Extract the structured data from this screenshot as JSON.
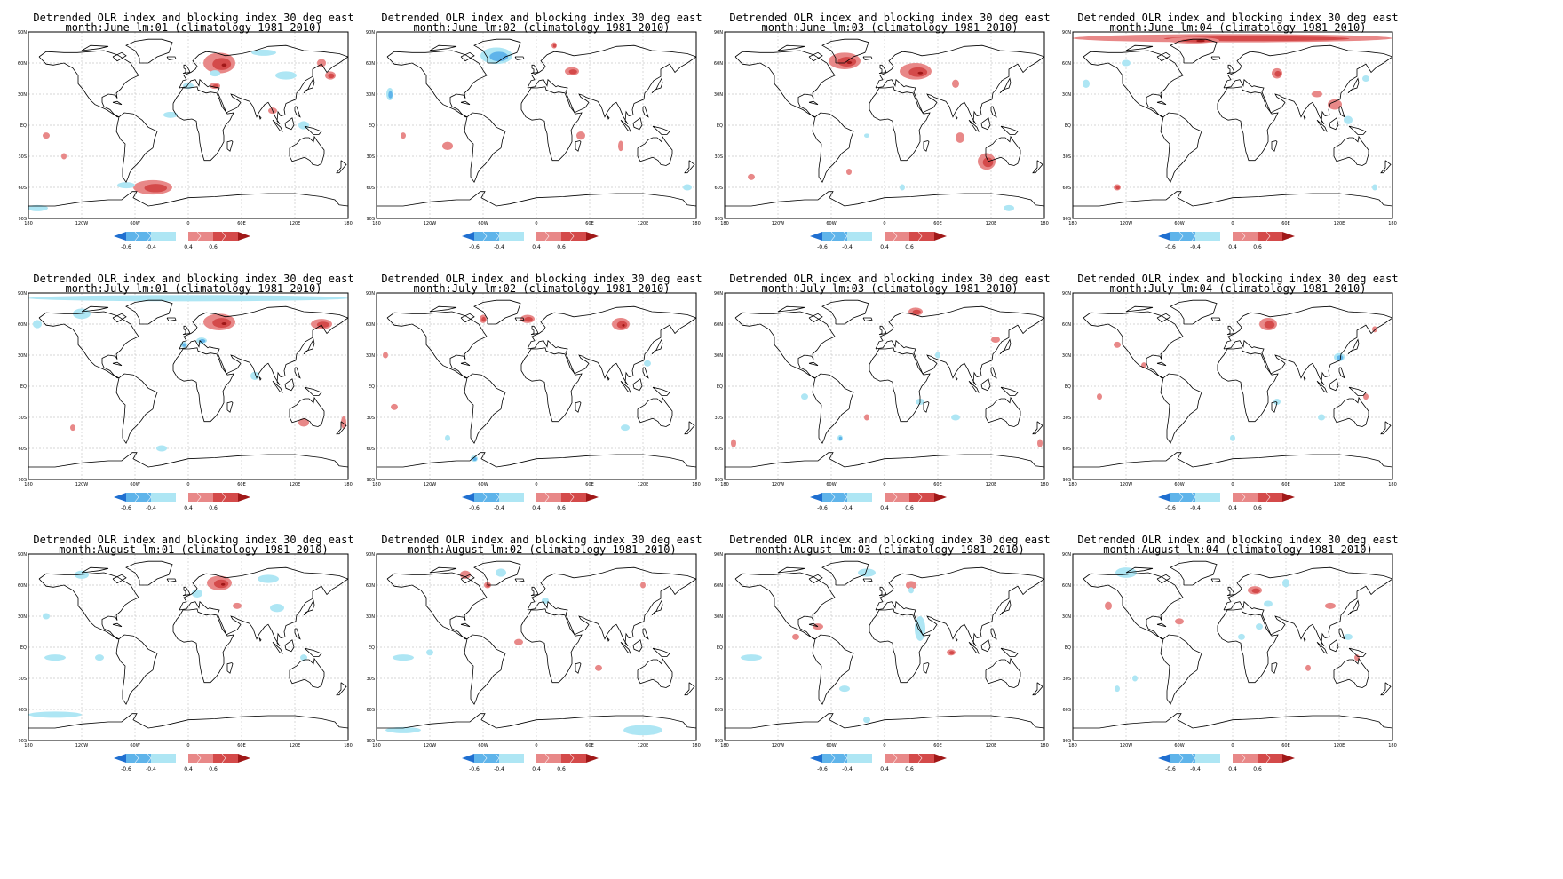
{
  "panel_title_line1": "Detrended OLR index and blocking index 30 deg east",
  "panels": [
    {
      "line2": "month:June lm:01 (climatology 1981-2010)"
    },
    {
      "line2": "month:June lm:02 (climatology 1981-2010)"
    },
    {
      "line2": "month:June lm:03 (climatology 1981-2010)"
    },
    {
      "line2": "month:June lm:04 (climatology 1981-2010)"
    },
    {
      "line2": "month:July lm:01 (climatology 1981-2010)"
    },
    {
      "line2": "month:July lm:02 (climatology 1981-2010)"
    },
    {
      "line2": "month:July lm:03 (climatology 1981-2010)"
    },
    {
      "line2": "month:July lm:04 (climatology 1981-2010)"
    },
    {
      "line2": "month:August lm:01 (climatology 1981-2010)"
    },
    {
      "line2": "month:August lm:02 (climatology 1981-2010)"
    },
    {
      "line2": "month:August lm:03 (climatology 1981-2010)"
    },
    {
      "line2": "month:August lm:04 (climatology 1981-2010)"
    }
  ],
  "lat_ticks": [
    "90N",
    "60N",
    "30N",
    "EQ",
    "30S",
    "60S",
    "90S"
  ],
  "lon_ticks": [
    "180",
    "120W",
    "60W",
    "0",
    "60E",
    "120E",
    "180"
  ],
  "colorbar_labels": [
    "-0.6",
    "-0.4",
    "0.4",
    "0.6"
  ],
  "colors": {
    "neg_strong": "#1f6fd0",
    "neg_mid": "#5fb4ea",
    "neg_weak": "#aee6f4",
    "pos_weak": "#e88888",
    "pos_mid": "#d44a4a",
    "pos_strong": "#a01818",
    "grid": "#c8c8c8",
    "coast": "#000000"
  }
}
